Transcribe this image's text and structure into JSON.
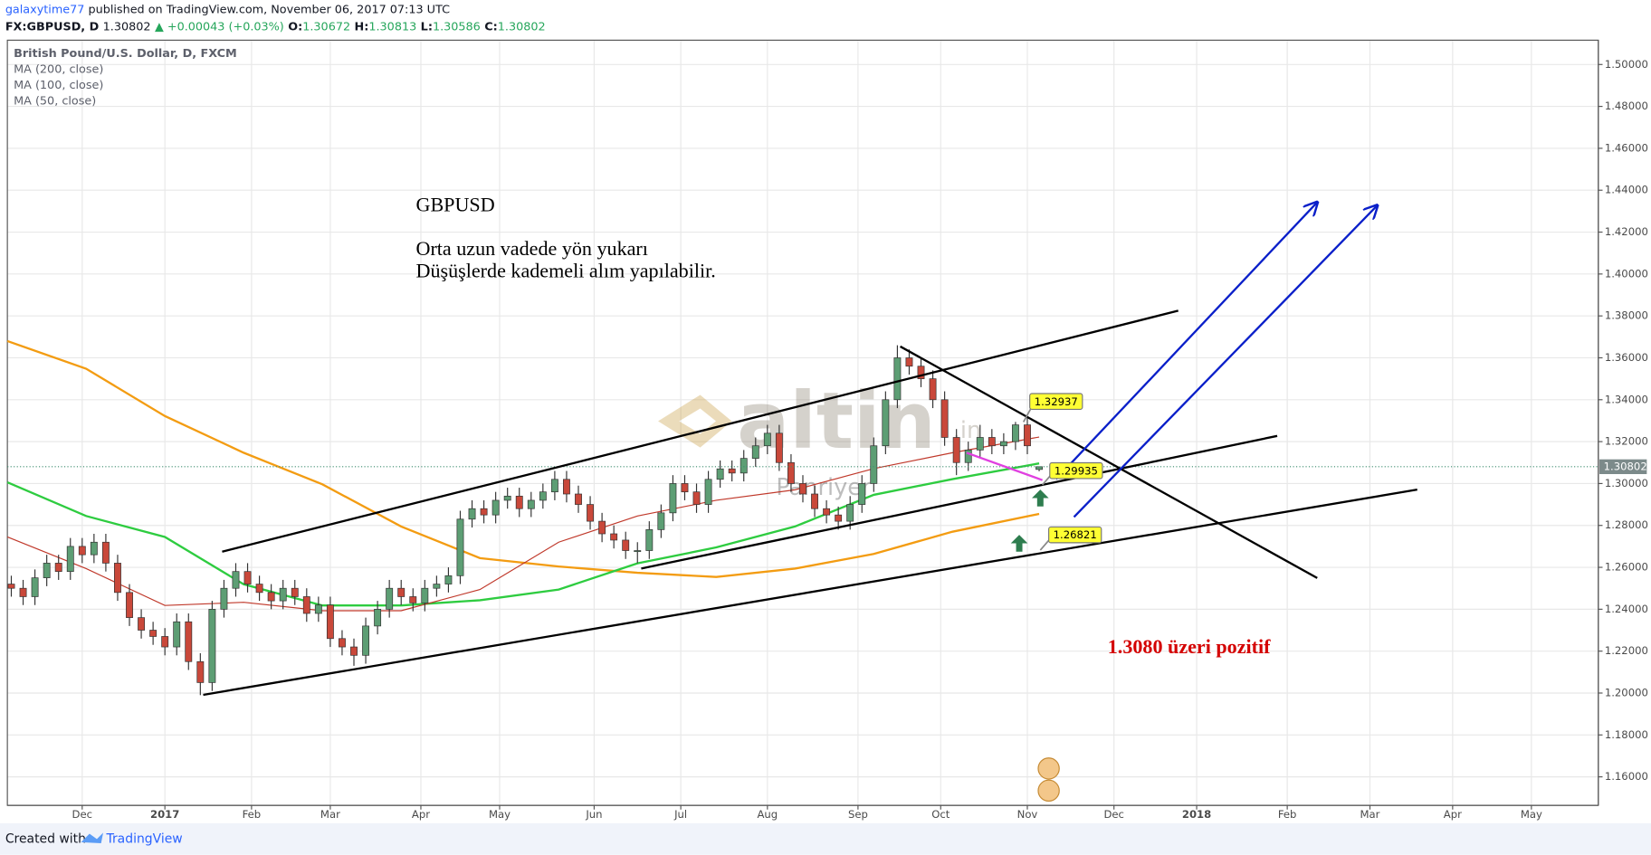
{
  "header": {
    "author": "galaxytime77",
    "published": "published on TradingView.com, November 06, 2017 07:13 UTC",
    "symbol": "FX:GBPUSD, D",
    "last": "1.30802",
    "change": "▲ +0.00043 (+0.03%)",
    "ohlc": [
      {
        "label": "O:",
        "value": "1.30672"
      },
      {
        "label": "H:",
        "value": "1.30813"
      },
      {
        "label": "L:",
        "value": "1.30586"
      },
      {
        "label": "C:",
        "value": "1.30802"
      }
    ]
  },
  "footer": {
    "created": "Created with",
    "brand": "TradingView"
  },
  "watermark": {
    "main": "altin",
    "suffix": ".in",
    "sub": "Panriyer"
  },
  "chart_data": {
    "type": "candlestick",
    "title": "British Pound/U.S. Dollar, D, FXCM",
    "x": [
      1,
      4,
      7,
      10,
      13,
      16,
      19,
      22,
      25,
      28,
      31,
      34,
      37,
      40,
      43,
      46,
      49,
      52,
      55,
      58,
      61,
      64,
      67,
      70,
      73,
      76,
      79,
      82,
      85,
      88,
      91,
      94,
      97,
      100,
      103,
      106,
      109,
      112,
      115,
      118,
      121,
      124,
      127,
      130,
      133,
      136,
      139,
      142,
      145,
      148,
      151,
      154,
      157,
      160,
      163,
      166,
      169,
      172,
      175,
      178,
      181,
      184,
      187,
      190,
      193,
      196,
      199,
      202,
      205,
      208,
      211,
      214,
      217,
      220,
      223,
      226,
      229,
      232,
      235,
      238,
      241,
      244,
      247,
      250,
      253,
      256,
      259,
      262
    ],
    "open": [
      1.252,
      1.25,
      1.246,
      1.255,
      1.262,
      1.258,
      1.27,
      1.266,
      1.272,
      1.262,
      1.248,
      1.236,
      1.23,
      1.227,
      1.222,
      1.234,
      1.215,
      1.205,
      1.24,
      1.25,
      1.258,
      1.252,
      1.248,
      1.244,
      1.25,
      1.246,
      1.238,
      1.242,
      1.226,
      1.222,
      1.218,
      1.232,
      1.24,
      1.25,
      1.246,
      1.243,
      1.25,
      1.252,
      1.256,
      1.283,
      1.288,
      1.285,
      1.292,
      1.294,
      1.288,
      1.292,
      1.296,
      1.302,
      1.295,
      1.29,
      1.282,
      1.276,
      1.273,
      1.268,
      1.268,
      1.278,
      1.286,
      1.3,
      1.296,
      1.29,
      1.302,
      1.307,
      1.305,
      1.312,
      1.318,
      1.324,
      1.31,
      1.3,
      1.295,
      1.288,
      1.285,
      1.282,
      1.29,
      1.3,
      1.318,
      1.34,
      1.36,
      1.356,
      1.35,
      1.34,
      1.322,
      1.31,
      1.316,
      1.322,
      1.318,
      1.32,
      1.328,
      1.30672
    ],
    "high": [
      1.256,
      1.254,
      1.259,
      1.266,
      1.266,
      1.274,
      1.274,
      1.276,
      1.276,
      1.266,
      1.252,
      1.24,
      1.234,
      1.231,
      1.238,
      1.238,
      1.219,
      1.244,
      1.254,
      1.262,
      1.262,
      1.256,
      1.252,
      1.254,
      1.254,
      1.25,
      1.246,
      1.246,
      1.23,
      1.226,
      1.236,
      1.244,
      1.254,
      1.254,
      1.25,
      1.254,
      1.256,
      1.26,
      1.287,
      1.292,
      1.292,
      1.296,
      1.298,
      1.298,
      1.296,
      1.3,
      1.306,
      1.306,
      1.299,
      1.294,
      1.286,
      1.28,
      1.277,
      1.272,
      1.282,
      1.29,
      1.304,
      1.304,
      1.3,
      1.306,
      1.311,
      1.311,
      1.316,
      1.322,
      1.328,
      1.328,
      1.314,
      1.304,
      1.299,
      1.292,
      1.289,
      1.294,
      1.304,
      1.322,
      1.344,
      1.366,
      1.364,
      1.36,
      1.354,
      1.344,
      1.326,
      1.32,
      1.328,
      1.326,
      1.324,
      1.3294,
      1.332,
      1.30813
    ],
    "low": [
      1.246,
      1.242,
      1.242,
      1.251,
      1.254,
      1.254,
      1.262,
      1.262,
      1.258,
      1.244,
      1.232,
      1.226,
      1.223,
      1.218,
      1.218,
      1.211,
      1.199,
      1.201,
      1.236,
      1.246,
      1.248,
      1.244,
      1.24,
      1.24,
      1.242,
      1.234,
      1.234,
      1.222,
      1.218,
      1.213,
      1.214,
      1.228,
      1.236,
      1.242,
      1.239,
      1.239,
      1.246,
      1.248,
      1.252,
      1.279,
      1.281,
      1.281,
      1.288,
      1.284,
      1.284,
      1.288,
      1.292,
      1.291,
      1.286,
      1.278,
      1.272,
      1.269,
      1.264,
      1.262,
      1.264,
      1.274,
      1.282,
      1.292,
      1.286,
      1.286,
      1.298,
      1.301,
      1.301,
      1.308,
      1.314,
      1.306,
      1.296,
      1.291,
      1.284,
      1.281,
      1.278,
      1.278,
      1.286,
      1.296,
      1.314,
      1.336,
      1.352,
      1.346,
      1.336,
      1.318,
      1.304,
      1.306,
      1.312,
      1.314,
      1.314,
      1.316,
      1.314,
      1.30586
    ],
    "close": [
      1.25,
      1.246,
      1.255,
      1.262,
      1.258,
      1.27,
      1.266,
      1.272,
      1.262,
      1.248,
      1.236,
      1.23,
      1.227,
      1.222,
      1.234,
      1.215,
      1.205,
      1.24,
      1.25,
      1.258,
      1.252,
      1.248,
      1.244,
      1.25,
      1.246,
      1.238,
      1.242,
      1.226,
      1.222,
      1.218,
      1.232,
      1.24,
      1.25,
      1.246,
      1.243,
      1.25,
      1.252,
      1.256,
      1.283,
      1.288,
      1.285,
      1.292,
      1.294,
      1.288,
      1.292,
      1.296,
      1.302,
      1.295,
      1.29,
      1.282,
      1.276,
      1.273,
      1.268,
      1.268,
      1.278,
      1.286,
      1.3,
      1.296,
      1.29,
      1.302,
      1.307,
      1.305,
      1.312,
      1.318,
      1.324,
      1.31,
      1.3,
      1.295,
      1.288,
      1.285,
      1.282,
      1.29,
      1.3,
      1.318,
      1.34,
      1.36,
      1.356,
      1.35,
      1.34,
      1.322,
      1.31,
      1.316,
      1.322,
      1.318,
      1.32,
      1.328,
      1.318,
      1.30802
    ],
    "up_color": "#5d9e74",
    "down_color": "#c9483a",
    "series": [
      {
        "name": "MA (200, close)",
        "color": "#f39c12",
        "x": [
          0,
          20,
          40,
          60,
          80,
          100,
          120,
          140,
          160,
          180,
          200,
          220,
          240,
          262
        ],
        "values": [
          1.368,
          1.3548,
          1.3322,
          1.3147,
          1.2996,
          1.2795,
          1.2644,
          1.2604,
          1.2574,
          1.2554,
          1.2594,
          1.2664,
          1.277,
          1.2855
        ]
      },
      {
        "name": "MA (100, close)",
        "color": "#2ecc40",
        "x": [
          0,
          20,
          40,
          60,
          80,
          100,
          120,
          140,
          160,
          180,
          200,
          220,
          240,
          262
        ],
        "values": [
          1.3006,
          1.2845,
          1.2745,
          1.2519,
          1.2418,
          1.2418,
          1.2443,
          1.2494,
          1.2619,
          1.2695,
          1.2795,
          1.2946,
          1.3021,
          1.3096
        ]
      },
      {
        "name": "MA (50, close)",
        "color": "#c0392b",
        "x": [
          0,
          20,
          40,
          60,
          80,
          100,
          120,
          140,
          160,
          180,
          200,
          220,
          240,
          262
        ],
        "values": [
          1.2745,
          1.2594,
          1.2418,
          1.2433,
          1.2393,
          1.2393,
          1.2494,
          1.272,
          1.2845,
          1.292,
          1.297,
          1.3071,
          1.3147,
          1.3222
        ]
      }
    ],
    "xlim": [
      0,
      404
    ],
    "xticks": [
      {
        "value": 19,
        "label": "Dec"
      },
      {
        "value": 40,
        "label": "2017"
      },
      {
        "value": 62,
        "label": "Feb"
      },
      {
        "value": 82,
        "label": "Mar"
      },
      {
        "value": 105,
        "label": "Apr"
      },
      {
        "value": 125,
        "label": "May"
      },
      {
        "value": 149,
        "label": "Jun"
      },
      {
        "value": 171,
        "label": "Jul"
      },
      {
        "value": 193,
        "label": "Aug"
      },
      {
        "value": 216,
        "label": "Sep"
      },
      {
        "value": 237,
        "label": "Oct"
      },
      {
        "value": 259,
        "label": "Nov"
      },
      {
        "value": 281,
        "label": "Dec"
      },
      {
        "value": 302,
        "label": "2018"
      },
      {
        "value": 325,
        "label": "Feb"
      },
      {
        "value": 346,
        "label": "Mar"
      },
      {
        "value": 367,
        "label": "Apr"
      },
      {
        "value": 387,
        "label": "May"
      }
    ],
    "ylim": [
      1.1464,
      1.5116
    ],
    "yticks": [
      {
        "value": 1.16,
        "label": "1.16000"
      },
      {
        "value": 1.18,
        "label": "1.18000"
      },
      {
        "value": 1.2,
        "label": "1.20000"
      },
      {
        "value": 1.22,
        "label": "1.22000"
      },
      {
        "value": 1.24,
        "label": "1.24000"
      },
      {
        "value": 1.26,
        "label": "1.26000"
      },
      {
        "value": 1.28,
        "label": "1.28000"
      },
      {
        "value": 1.3,
        "label": "1.30000"
      },
      {
        "value": 1.32,
        "label": "1.32000"
      },
      {
        "value": 1.34,
        "label": "1.34000"
      },
      {
        "value": 1.36,
        "label": "1.36000"
      },
      {
        "value": 1.38,
        "label": "1.38000"
      },
      {
        "value": 1.4,
        "label": "1.40000"
      },
      {
        "value": 1.42,
        "label": "1.42000"
      },
      {
        "value": 1.44,
        "label": "1.44000"
      },
      {
        "value": 1.46,
        "label": "1.46000"
      },
      {
        "value": 1.48,
        "label": "1.48000"
      },
      {
        "value": 1.5,
        "label": "1.50000"
      }
    ],
    "grid": true,
    "last_price": 1.30802,
    "price_callouts": [
      1.32937,
      1.29935,
      1.26821
    ],
    "notes": [
      "GBPUSD",
      "Orta uzun vadede yön yukarı",
      "Düşüşlerde kademeli alım yapılabilir.",
      "1.3080 üzeri pozitif"
    ]
  }
}
